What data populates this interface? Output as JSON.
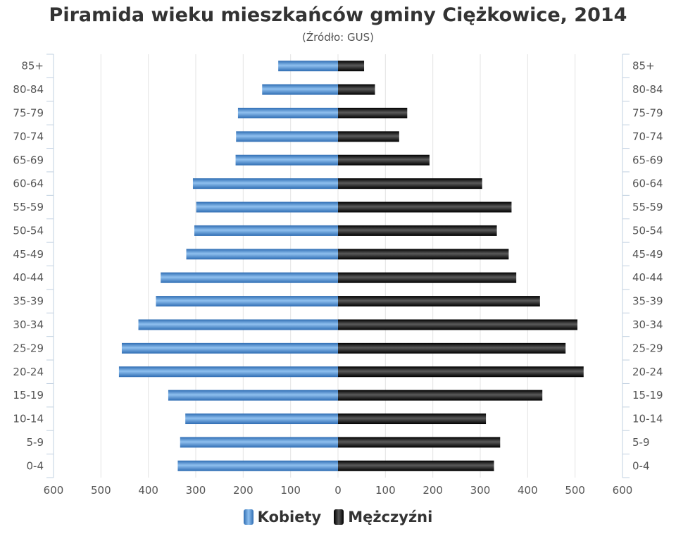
{
  "title": "Piramida wieku mieszkańców gminy Ciężkowice, 2014",
  "subtitle": "(Źródło: GUS)",
  "colors": {
    "women_dark": "#2f6db3",
    "women_light": "#8fc0ef",
    "men_dark": "#000000",
    "men_light": "#5a5a5a"
  },
  "chart_data": {
    "type": "bar",
    "orientation": "horizontal",
    "categories": [
      "85+",
      "80-84",
      "75-79",
      "70-74",
      "65-69",
      "60-64",
      "55-59",
      "50-54",
      "45-49",
      "40-44",
      "35-39",
      "30-34",
      "25-29",
      "20-24",
      "15-19",
      "10-14",
      "5-9",
      "0-4"
    ],
    "series": [
      {
        "name": "Kobiety",
        "color": "#4a86c5",
        "direction": "left",
        "values": [
          126,
          160,
          211,
          215,
          216,
          306,
          299,
          303,
          320,
          374,
          384,
          421,
          456,
          462,
          358,
          322,
          333,
          338
        ]
      },
      {
        "name": "Mężczyźni",
        "color": "#1a1a1a",
        "direction": "right",
        "values": [
          55,
          78,
          146,
          129,
          193,
          304,
          366,
          335,
          360,
          376,
          426,
          505,
          480,
          518,
          431,
          312,
          342,
          329
        ]
      }
    ],
    "x_ticks_left": [
      "600",
      "500",
      "400",
      "300",
      "200",
      "100"
    ],
    "x_ticks_right": [
      "0",
      "100",
      "200",
      "300",
      "400",
      "500",
      "600"
    ],
    "xlim": [
      -600,
      600
    ],
    "grid": true,
    "legend_position": "bottom",
    "y_labels_both_sides": true
  }
}
